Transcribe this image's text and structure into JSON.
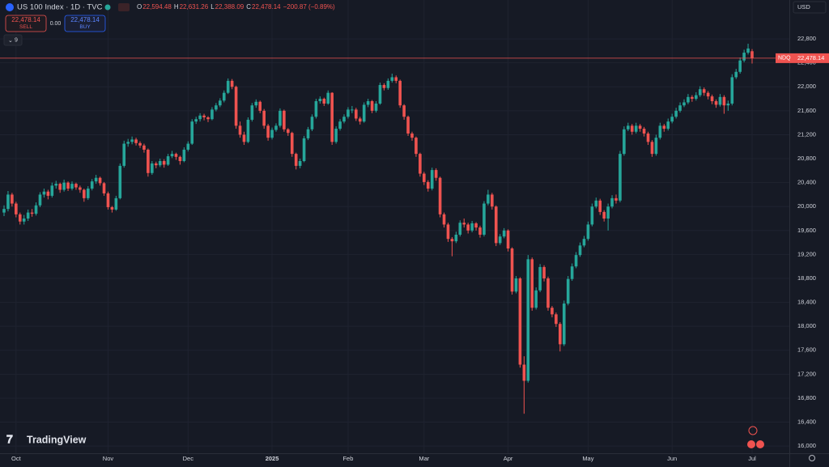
{
  "header": {
    "symbol": "US 100 Index · 1D · TVC",
    "ohlc": [
      {
        "key": "O",
        "value": "22,594.48"
      },
      {
        "key": "H",
        "value": "22,631.26"
      },
      {
        "key": "L",
        "value": "22,388.09"
      },
      {
        "key": "C",
        "value": "22,478.14"
      }
    ],
    "change": "−200.87 (−0.89%)",
    "sell_price": "22,478.14",
    "sell": "SELL",
    "spread": "0.00",
    "buy_price": "22,478.14",
    "buy": "BUY",
    "indicators": "9",
    "currency": "USD",
    "logo": "TradingView"
  },
  "chart_data": {
    "type": "candlestick",
    "up_color": "#26a69a",
    "down_color": "#ef5350",
    "grid": true,
    "ylim": [
      15880,
      23450
    ],
    "yticks": [
      {
        "value": 16000,
        "label": "16,000"
      },
      {
        "value": 16400,
        "label": "16,400"
      },
      {
        "value": 16800,
        "label": "16,800"
      },
      {
        "value": 17200,
        "label": "17,200"
      },
      {
        "value": 17600,
        "label": "17,600"
      },
      {
        "value": 18000,
        "label": "18,000"
      },
      {
        "value": 18400,
        "label": "18,400"
      },
      {
        "value": 18800,
        "label": "18,800"
      },
      {
        "value": 19200,
        "label": "19,200"
      },
      {
        "value": 19600,
        "label": "19,600"
      },
      {
        "value": 20000,
        "label": "20,000"
      },
      {
        "value": 20400,
        "label": "20,400"
      },
      {
        "value": 20800,
        "label": "20,800"
      },
      {
        "value": 21200,
        "label": "21,200"
      },
      {
        "value": 21600,
        "label": "21,600"
      },
      {
        "value": 22000,
        "label": "22,000"
      },
      {
        "value": 22400,
        "label": "22,400"
      },
      {
        "value": 22800,
        "label": "22,800"
      }
    ],
    "last_price": {
      "name": "NDQ",
      "value": 22478.14,
      "label": "22,478.14"
    },
    "categories": [
      null,
      null,
      null,
      "Oct",
      null,
      null,
      null,
      null,
      null,
      null,
      null,
      null,
      null,
      null,
      null,
      null,
      null,
      null,
      null,
      null,
      null,
      null,
      null,
      null,
      null,
      null,
      "Nov",
      null,
      null,
      null,
      null,
      null,
      null,
      null,
      null,
      null,
      null,
      null,
      null,
      null,
      null,
      null,
      null,
      null,
      null,
      null,
      "Dec",
      null,
      null,
      null,
      null,
      null,
      null,
      null,
      null,
      null,
      null,
      null,
      null,
      null,
      null,
      null,
      null,
      null,
      null,
      null,
      null,
      "2025",
      null,
      null,
      null,
      null,
      null,
      null,
      null,
      null,
      null,
      null,
      null,
      null,
      null,
      null,
      null,
      null,
      null,
      null,
      "Feb",
      null,
      null,
      null,
      null,
      null,
      null,
      null,
      null,
      null,
      null,
      null,
      null,
      null,
      null,
      null,
      null,
      null,
      null,
      "Mar",
      null,
      null,
      null,
      null,
      null,
      null,
      null,
      null,
      null,
      null,
      null,
      null,
      null,
      null,
      null,
      null,
      null,
      null,
      null,
      null,
      "Apr",
      null,
      null,
      null,
      null,
      null,
      null,
      null,
      null,
      null,
      null,
      null,
      null,
      null,
      null,
      null,
      null,
      null,
      null,
      null,
      "May",
      null,
      null,
      null,
      null,
      null,
      null,
      null,
      null,
      null,
      null,
      null,
      null,
      null,
      null,
      null,
      null,
      null,
      null,
      null,
      null,
      "Jun",
      null,
      null,
      null,
      null,
      null,
      null,
      null,
      null,
      null,
      null,
      null,
      null,
      null,
      null,
      null,
      null,
      null,
      null,
      null,
      "Jul"
    ],
    "candles": [
      [
        19900,
        20020,
        19840,
        19960
      ],
      [
        19960,
        20260,
        19920,
        20200
      ],
      [
        20200,
        20230,
        20000,
        20050
      ],
      [
        20050,
        20080,
        19820,
        19870
      ],
      [
        19870,
        19900,
        19700,
        19750
      ],
      [
        19750,
        19860,
        19700,
        19800
      ],
      [
        19800,
        19950,
        19760,
        19900
      ],
      [
        19900,
        19960,
        19830,
        19880
      ],
      [
        19880,
        20070,
        19850,
        20020
      ],
      [
        20020,
        20240,
        19990,
        20200
      ],
      [
        20200,
        20300,
        20150,
        20250
      ],
      [
        20250,
        20280,
        20120,
        20180
      ],
      [
        20180,
        20400,
        20150,
        20350
      ],
      [
        20350,
        20430,
        20300,
        20380
      ],
      [
        20380,
        20400,
        20230,
        20280
      ],
      [
        20280,
        20450,
        20250,
        20400
      ],
      [
        20400,
        20420,
        20260,
        20300
      ],
      [
        20300,
        20420,
        20270,
        20380
      ],
      [
        20380,
        20400,
        20280,
        20320
      ],
      [
        20320,
        20350,
        20230,
        20280
      ],
      [
        20280,
        20300,
        20080,
        20140
      ],
      [
        20140,
        20340,
        20110,
        20300
      ],
      [
        20300,
        20460,
        20270,
        20420
      ],
      [
        20420,
        20530,
        20380,
        20480
      ],
      [
        20480,
        20500,
        20350,
        20390
      ],
      [
        20390,
        20410,
        20180,
        20220
      ],
      [
        20220,
        20250,
        19950,
        19990
      ],
      [
        19990,
        20010,
        19900,
        19950
      ],
      [
        19950,
        20180,
        19930,
        20140
      ],
      [
        20140,
        20720,
        20120,
        20680
      ],
      [
        20680,
        21100,
        20650,
        21050
      ],
      [
        21050,
        21130,
        21000,
        21080
      ],
      [
        21080,
        21170,
        21040,
        21120
      ],
      [
        21120,
        21150,
        21020,
        21060
      ],
      [
        21060,
        21090,
        20980,
        21020
      ],
      [
        21020,
        21050,
        20900,
        20950
      ],
      [
        20950,
        20970,
        20500,
        20560
      ],
      [
        20560,
        20760,
        20530,
        20720
      ],
      [
        20720,
        20750,
        20640,
        20690
      ],
      [
        20690,
        20800,
        20660,
        20760
      ],
      [
        20760,
        20790,
        20650,
        20700
      ],
      [
        20700,
        20880,
        20680,
        20840
      ],
      [
        20840,
        20930,
        20810,
        20880
      ],
      [
        20880,
        20900,
        20780,
        20830
      ],
      [
        20830,
        20850,
        20700,
        20760
      ],
      [
        20760,
        20990,
        20740,
        20950
      ],
      [
        20950,
        21090,
        20920,
        21050
      ],
      [
        21050,
        21460,
        21030,
        21420
      ],
      [
        21420,
        21500,
        21380,
        21460
      ],
      [
        21460,
        21560,
        21420,
        21520
      ],
      [
        21520,
        21550,
        21440,
        21490
      ],
      [
        21490,
        21510,
        21410,
        21460
      ],
      [
        21460,
        21660,
        21440,
        21620
      ],
      [
        21620,
        21730,
        21590,
        21690
      ],
      [
        21690,
        21810,
        21660,
        21770
      ],
      [
        21770,
        21940,
        21740,
        21900
      ],
      [
        21900,
        22140,
        21880,
        22100
      ],
      [
        22100,
        22130,
        21960,
        22000
      ],
      [
        22000,
        22020,
        21300,
        21350
      ],
      [
        21350,
        21420,
        21150,
        21200
      ],
      [
        21200,
        21250,
        21030,
        21080
      ],
      [
        21080,
        21490,
        21060,
        21450
      ],
      [
        21450,
        21730,
        21420,
        21690
      ],
      [
        21690,
        21790,
        21650,
        21750
      ],
      [
        21750,
        21770,
        21560,
        21600
      ],
      [
        21600,
        21630,
        21300,
        21350
      ],
      [
        21350,
        21380,
        21100,
        21150
      ],
      [
        21150,
        21320,
        21120,
        21280
      ],
      [
        21280,
        21390,
        21250,
        21350
      ],
      [
        21350,
        21640,
        21320,
        21600
      ],
      [
        21600,
        21620,
        21250,
        21290
      ],
      [
        21290,
        21310,
        21180,
        21230
      ],
      [
        21230,
        21250,
        20830,
        20880
      ],
      [
        20880,
        20900,
        20620,
        20680
      ],
      [
        20680,
        20800,
        20640,
        20760
      ],
      [
        20760,
        21180,
        20740,
        21140
      ],
      [
        21140,
        21330,
        21110,
        21290
      ],
      [
        21290,
        21540,
        21260,
        21500
      ],
      [
        21500,
        21800,
        21470,
        21760
      ],
      [
        21760,
        21840,
        21720,
        21800
      ],
      [
        21800,
        21820,
        21680,
        21720
      ],
      [
        21720,
        21940,
        21700,
        21900
      ],
      [
        21900,
        21910,
        21030,
        21080
      ],
      [
        21080,
        21340,
        21050,
        21300
      ],
      [
        21300,
        21460,
        21270,
        21420
      ],
      [
        21420,
        21540,
        21390,
        21500
      ],
      [
        21500,
        21660,
        21470,
        21620
      ],
      [
        21620,
        21680,
        21560,
        21620
      ],
      [
        21620,
        21650,
        21430,
        21470
      ],
      [
        21470,
        21500,
        21370,
        21420
      ],
      [
        21420,
        21740,
        21400,
        21700
      ],
      [
        21700,
        21800,
        21660,
        21760
      ],
      [
        21760,
        21780,
        21560,
        21600
      ],
      [
        21600,
        21760,
        21570,
        21720
      ],
      [
        21720,
        22070,
        21700,
        22030
      ],
      [
        22030,
        22060,
        21940,
        21980
      ],
      [
        21980,
        22140,
        21950,
        22100
      ],
      [
        22100,
        22220,
        22070,
        22160
      ],
      [
        22160,
        22190,
        22060,
        22100
      ],
      [
        22100,
        22120,
        21650,
        21690
      ],
      [
        21690,
        21710,
        21450,
        21500
      ],
      [
        21500,
        21520,
        21180,
        21220
      ],
      [
        21220,
        21250,
        21100,
        21150
      ],
      [
        21150,
        21170,
        20830,
        20880
      ],
      [
        20880,
        20900,
        20500,
        20550
      ],
      [
        20550,
        20580,
        20360,
        20410
      ],
      [
        20410,
        20440,
        20250,
        20300
      ],
      [
        20300,
        20650,
        20270,
        20610
      ],
      [
        20610,
        20640,
        20430,
        20480
      ],
      [
        20480,
        20500,
        19820,
        19870
      ],
      [
        19870,
        19900,
        19650,
        19700
      ],
      [
        19700,
        19730,
        19410,
        19460
      ],
      [
        19460,
        19490,
        19170,
        19420
      ],
      [
        19420,
        19580,
        19390,
        19530
      ],
      [
        19530,
        19770,
        19500,
        19730
      ],
      [
        19730,
        19800,
        19650,
        19700
      ],
      [
        19700,
        19730,
        19550,
        19600
      ],
      [
        19600,
        19760,
        19570,
        19720
      ],
      [
        19720,
        19740,
        19600,
        19650
      ],
      [
        19650,
        19680,
        19480,
        19530
      ],
      [
        19530,
        20090,
        19500,
        20050
      ],
      [
        20050,
        20280,
        20020,
        20200
      ],
      [
        20200,
        20230,
        19950,
        20000
      ],
      [
        20000,
        20020,
        19340,
        19390
      ],
      [
        19390,
        19540,
        19360,
        19500
      ],
      [
        19500,
        19640,
        19470,
        19600
      ],
      [
        19600,
        19620,
        19250,
        19300
      ],
      [
        19300,
        19320,
        18530,
        18580
      ],
      [
        18580,
        18840,
        18550,
        18800
      ],
      [
        18800,
        18820,
        17310,
        17360
      ],
      [
        17360,
        17500,
        16540,
        17090
      ],
      [
        17090,
        19190,
        17060,
        19120
      ],
      [
        19120,
        19150,
        18260,
        18310
      ],
      [
        18310,
        18650,
        18280,
        18600
      ],
      [
        18600,
        19040,
        18570,
        18990
      ],
      [
        18990,
        19020,
        18750,
        18800
      ],
      [
        18800,
        18830,
        18260,
        18310
      ],
      [
        18310,
        18340,
        18150,
        18200
      ],
      [
        18200,
        18230,
        17990,
        18040
      ],
      [
        18040,
        18070,
        17580,
        17700
      ],
      [
        17700,
        18430,
        17670,
        18380
      ],
      [
        18380,
        18840,
        18350,
        18790
      ],
      [
        18790,
        19050,
        18760,
        19000
      ],
      [
        19000,
        19240,
        18970,
        19190
      ],
      [
        19190,
        19400,
        19160,
        19350
      ],
      [
        19350,
        19510,
        19320,
        19460
      ],
      [
        19460,
        19750,
        19430,
        19700
      ],
      [
        19700,
        20050,
        19670,
        20000
      ],
      [
        20000,
        20150,
        19970,
        20100
      ],
      [
        20100,
        20130,
        19860,
        19910
      ],
      [
        19910,
        19940,
        19750,
        19800
      ],
      [
        19800,
        20050,
        19600,
        20000
      ],
      [
        20000,
        20190,
        19970,
        20140
      ],
      [
        20140,
        20200,
        20050,
        20100
      ],
      [
        20100,
        20930,
        20070,
        20880
      ],
      [
        20880,
        21340,
        20850,
        21290
      ],
      [
        21290,
        21400,
        21260,
        21350
      ],
      [
        21350,
        21380,
        21200,
        21250
      ],
      [
        21250,
        21400,
        21220,
        21350
      ],
      [
        21350,
        21380,
        21250,
        21300
      ],
      [
        21300,
        21330,
        21170,
        21220
      ],
      [
        21220,
        21250,
        21030,
        21080
      ],
      [
        21080,
        21110,
        20830,
        20880
      ],
      [
        20880,
        21200,
        20850,
        21150
      ],
      [
        21150,
        21400,
        21120,
        21350
      ],
      [
        21350,
        21380,
        21250,
        21300
      ],
      [
        21300,
        21470,
        21270,
        21420
      ],
      [
        21420,
        21550,
        21390,
        21500
      ],
      [
        21500,
        21650,
        21470,
        21600
      ],
      [
        21600,
        21740,
        21570,
        21690
      ],
      [
        21690,
        21790,
        21660,
        21740
      ],
      [
        21740,
        21880,
        21710,
        21830
      ],
      [
        21830,
        21860,
        21750,
        21800
      ],
      [
        21800,
        21910,
        21770,
        21860
      ],
      [
        21860,
        22010,
        21830,
        21960
      ],
      [
        21960,
        21990,
        21850,
        21900
      ],
      [
        21900,
        21930,
        21790,
        21840
      ],
      [
        21840,
        21870,
        21710,
        21760
      ],
      [
        21760,
        21790,
        21650,
        21700
      ],
      [
        21700,
        21880,
        21670,
        21830
      ],
      [
        21830,
        21860,
        21550,
        21690
      ],
      [
        21690,
        21770,
        21600,
        21720
      ],
      [
        21720,
        22210,
        21690,
        22160
      ],
      [
        22160,
        22300,
        22130,
        22250
      ],
      [
        22250,
        22490,
        22220,
        22440
      ],
      [
        22440,
        22620,
        22410,
        22570
      ],
      [
        22570,
        22720,
        22540,
        22640
      ],
      [
        22594.48,
        22631.26,
        22388.09,
        22478.14
      ]
    ]
  }
}
